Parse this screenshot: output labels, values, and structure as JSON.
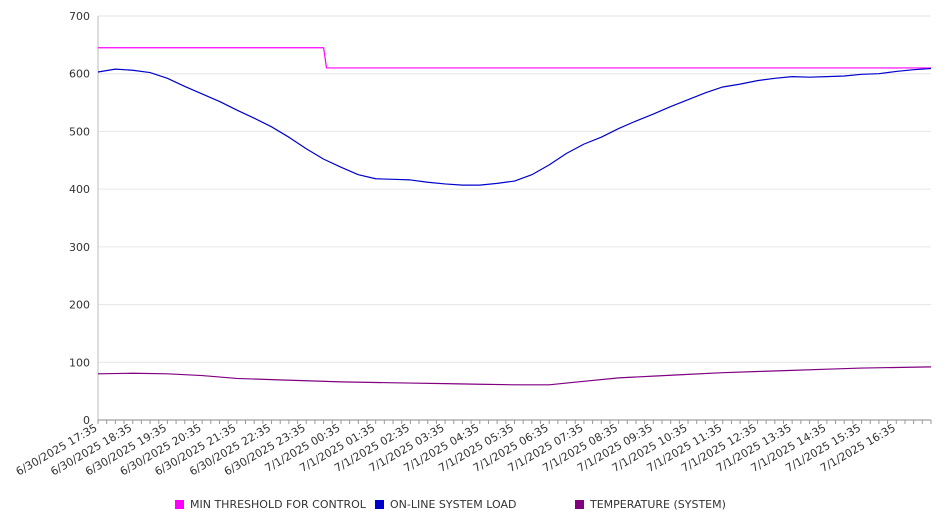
{
  "chart_data": {
    "type": "line",
    "ylim": [
      0,
      700
    ],
    "yticks": [
      0,
      100,
      200,
      300,
      400,
      500,
      600,
      700
    ],
    "grid": true,
    "legend_position": "bottom",
    "x_tick_labels": [
      "6/30/2025 17:35",
      "6/30/2025 18:35",
      "6/30/2025 19:35",
      "6/30/2025 20:35",
      "6/30/2025 21:35",
      "6/30/2025 22:35",
      "6/30/2025 23:35",
      "7/1/2025 00:35",
      "7/1/2025 01:35",
      "7/1/2025 02:35",
      "7/1/2025 03:35",
      "7/1/2025 04:35",
      "7/1/2025 05:35",
      "7/1/2025 06:35",
      "7/1/2025 07:35",
      "7/1/2025 08:35",
      "7/1/2025 09:35",
      "7/1/2025 10:35",
      "7/1/2025 11:35",
      "7/1/2025 12:35",
      "7/1/2025 13:35",
      "7/1/2025 14:35",
      "7/1/2025 15:35",
      "7/1/2025 16:35"
    ],
    "x_range": [
      "6/30/2025 17:35",
      "7/1/2025 17:35"
    ],
    "series": [
      {
        "name": "MIN THRESHOLD FOR CONTROL",
        "color": "#ff00ff",
        "points": [
          [
            "6/30/2025 17:35",
            645
          ],
          [
            "7/1/2025 00:05",
            645
          ],
          [
            "7/1/2025 00:10",
            610
          ],
          [
            "7/1/2025 17:35",
            610
          ]
        ]
      },
      {
        "name": "ON-LINE SYSTEM LOAD",
        "color": "#0000cc",
        "points": [
          [
            "6/30/2025 17:35",
            603
          ],
          [
            "6/30/2025 18:05",
            608
          ],
          [
            "6/30/2025 18:35",
            606
          ],
          [
            "6/30/2025 19:05",
            602
          ],
          [
            "6/30/2025 19:35",
            592
          ],
          [
            "6/30/2025 20:05",
            578
          ],
          [
            "6/30/2025 20:35",
            565
          ],
          [
            "6/30/2025 21:05",
            552
          ],
          [
            "6/30/2025 21:35",
            537
          ],
          [
            "6/30/2025 22:05",
            523
          ],
          [
            "6/30/2025 22:35",
            508
          ],
          [
            "6/30/2025 23:05",
            490
          ],
          [
            "6/30/2025 23:35",
            470
          ],
          [
            "7/1/2025 00:05",
            452
          ],
          [
            "7/1/2025 00:35",
            438
          ],
          [
            "7/1/2025 01:05",
            425
          ],
          [
            "7/1/2025 01:35",
            418
          ],
          [
            "7/1/2025 02:05",
            417
          ],
          [
            "7/1/2025 02:35",
            416
          ],
          [
            "7/1/2025 03:05",
            412
          ],
          [
            "7/1/2025 03:35",
            409
          ],
          [
            "7/1/2025 04:05",
            407
          ],
          [
            "7/1/2025 04:35",
            407
          ],
          [
            "7/1/2025 05:05",
            410
          ],
          [
            "7/1/2025 05:35",
            414
          ],
          [
            "7/1/2025 06:05",
            425
          ],
          [
            "7/1/2025 06:35",
            442
          ],
          [
            "7/1/2025 07:05",
            462
          ],
          [
            "7/1/2025 07:35",
            478
          ],
          [
            "7/1/2025 08:05",
            490
          ],
          [
            "7/1/2025 08:35",
            505
          ],
          [
            "7/1/2025 09:05",
            518
          ],
          [
            "7/1/2025 09:35",
            530
          ],
          [
            "7/1/2025 10:05",
            543
          ],
          [
            "7/1/2025 10:35",
            555
          ],
          [
            "7/1/2025 11:05",
            567
          ],
          [
            "7/1/2025 11:35",
            577
          ],
          [
            "7/1/2025 12:05",
            582
          ],
          [
            "7/1/2025 12:35",
            588
          ],
          [
            "7/1/2025 13:05",
            592
          ],
          [
            "7/1/2025 13:35",
            595
          ],
          [
            "7/1/2025 14:05",
            594
          ],
          [
            "7/1/2025 14:35",
            595
          ],
          [
            "7/1/2025 15:05",
            596
          ],
          [
            "7/1/2025 15:35",
            599
          ],
          [
            "7/1/2025 16:05",
            600
          ],
          [
            "7/1/2025 16:35",
            604
          ],
          [
            "7/1/2025 17:05",
            607
          ],
          [
            "7/1/2025 17:35",
            609
          ]
        ]
      },
      {
        "name": "TEMPERATURE (SYSTEM)",
        "color": "#800080",
        "points": [
          [
            "6/30/2025 17:35",
            80
          ],
          [
            "6/30/2025 18:35",
            81
          ],
          [
            "6/30/2025 19:35",
            80
          ],
          [
            "6/30/2025 20:35",
            77
          ],
          [
            "6/30/2025 21:35",
            72
          ],
          [
            "6/30/2025 22:35",
            70
          ],
          [
            "6/30/2025 23:35",
            68
          ],
          [
            "7/1/2025 00:35",
            66
          ],
          [
            "7/1/2025 01:35",
            65
          ],
          [
            "7/1/2025 02:35",
            64
          ],
          [
            "7/1/2025 03:35",
            63
          ],
          [
            "7/1/2025 04:35",
            62
          ],
          [
            "7/1/2025 05:35",
            61
          ],
          [
            "7/1/2025 06:35",
            61
          ],
          [
            "7/1/2025 07:35",
            67
          ],
          [
            "7/1/2025 08:35",
            73
          ],
          [
            "7/1/2025 09:35",
            76
          ],
          [
            "7/1/2025 10:35",
            79
          ],
          [
            "7/1/2025 11:35",
            82
          ],
          [
            "7/1/2025 12:35",
            84
          ],
          [
            "7/1/2025 13:35",
            86
          ],
          [
            "7/1/2025 14:35",
            88
          ],
          [
            "7/1/2025 15:35",
            90
          ],
          [
            "7/1/2025 16:35",
            91
          ],
          [
            "7/1/2025 17:35",
            92
          ]
        ]
      }
    ]
  }
}
